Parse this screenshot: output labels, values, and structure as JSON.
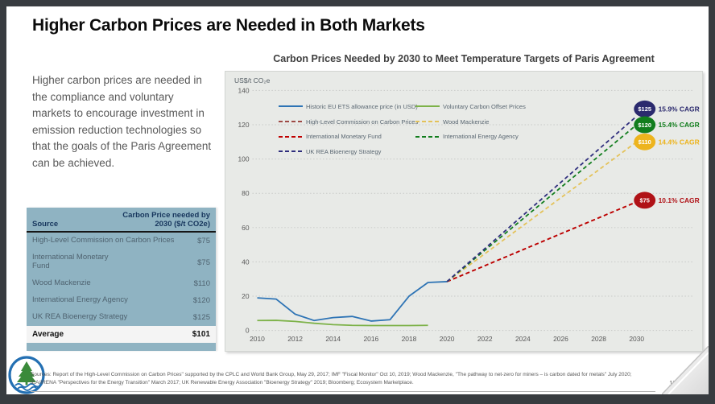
{
  "slide": {
    "title": "Higher Carbon Prices are Needed in Both Markets",
    "intro_text": "Higher carbon prices are needed in the compliance and voluntary markets to encourage investment in emission reduction technologies so that the goals of the Paris Agreement can be achieved.",
    "sources_line1": "Sources: Report of the High-Level Commission on Carbon Prices\" supported by the CPLC and World Bank Group, May 29, 2017; IMF \"Fiscal Monitor\" Oct 10, 2019; Wood Mackenzie, \"The pathway to net-zero for miners – is carbon dated for metals\" July 2020;",
    "sources_line2": "IEA/IRENA \"Perspectives for the Energy Transition\" March 2017; UK Renewable Energy Association \"Bioenergy Strategy\" 2019; Bloomberg; Ecosystem Marketplace.",
    "page_number": "17"
  },
  "table": {
    "headers": [
      "Source",
      "Carbon Price needed by 2030 ($/t CO2e)"
    ],
    "rows": [
      {
        "source": "High-Level Commission on Carbon Prices",
        "value": "$75"
      },
      {
        "source": "International Monetary\nFund",
        "value": "$75"
      },
      {
        "source": "Wood Mackenzie",
        "value": "$110"
      },
      {
        "source": "International Energy Agency",
        "value": "$120"
      },
      {
        "source": "UK REA Bioenergy Strategy",
        "value": "$125"
      }
    ],
    "footer_row": {
      "source": "Average",
      "value": "$101"
    }
  },
  "chart_data": {
    "type": "line",
    "title": "Carbon Prices Needed by 2030 to Meet Temperature Targets of Paris Agreement",
    "ylabel": "US$/t CO₂e",
    "ylim": [
      0,
      140
    ],
    "ytick_step": 20,
    "xticks": [
      2010,
      2012,
      2014,
      2016,
      2018,
      2020,
      2022,
      2024,
      2026,
      2028,
      2030
    ],
    "grid": "dotted-horizontal",
    "legend_position": "top-center-two-columns",
    "series": [
      {
        "name": "Historic EU ETS allowance price (in USD)",
        "color": "#2E74B5",
        "style": "solid",
        "points": [
          [
            2010,
            19
          ],
          [
            2011,
            18.3
          ],
          [
            2012,
            9.5
          ],
          [
            2013,
            5.8
          ],
          [
            2014,
            7.5
          ],
          [
            2015,
            8.2
          ],
          [
            2016,
            5.5
          ],
          [
            2017,
            6.3
          ],
          [
            2018,
            20
          ],
          [
            2019,
            28
          ],
          [
            2020,
            28.5
          ]
        ]
      },
      {
        "name": "Voluntary Carbon Offset Prices",
        "color": "#7DB249",
        "style": "solid",
        "points": [
          [
            2010,
            5.8
          ],
          [
            2011,
            5.9
          ],
          [
            2012,
            5.3
          ],
          [
            2013,
            4.2
          ],
          [
            2014,
            3.4
          ],
          [
            2015,
            3.0
          ],
          [
            2016,
            2.9
          ],
          [
            2017,
            2.9
          ],
          [
            2018,
            2.9
          ],
          [
            2019,
            3.0
          ]
        ]
      },
      {
        "name": "High-Level Commission on Carbon Prices",
        "color": "#9E4A45",
        "style": "dashed",
        "points": [
          [
            2020,
            28.5
          ],
          [
            2030,
            75
          ]
        ]
      },
      {
        "name": "International Monetary Fund",
        "color": "#C00000",
        "style": "dashed",
        "points": [
          [
            2020,
            28.5
          ],
          [
            2030,
            75
          ]
        ]
      },
      {
        "name": "Wood Mackenzie",
        "color": "#E4C259",
        "style": "dashed",
        "points": [
          [
            2020,
            28.5
          ],
          [
            2030,
            110
          ]
        ]
      },
      {
        "name": "International Energy Agency",
        "color": "#117D1D",
        "style": "dashed",
        "points": [
          [
            2020,
            28.5
          ],
          [
            2030,
            120
          ]
        ]
      },
      {
        "name": "UK REA Bioenergy Strategy",
        "color": "#2F2E7D",
        "style": "dashed",
        "points": [
          [
            2020,
            28.5
          ],
          [
            2030,
            125
          ]
        ]
      }
    ],
    "end_labels": [
      {
        "price": "$125",
        "cagr": "15.9% CAGR",
        "value": 125,
        "color": "#2B2A6E",
        "dy": -9
      },
      {
        "price": "$120",
        "cagr": "15.4% CAGR",
        "value": 120,
        "color": "#117D1D",
        "dy": 0
      },
      {
        "price": "$110",
        "cagr": "14.4% CAGR",
        "value": 110,
        "color": "#EDB41E",
        "dy": 0
      },
      {
        "price": "$75",
        "cagr": "10.1% CAGR",
        "value": 75,
        "color": "#B01217",
        "dy": -2
      }
    ],
    "legend": {
      "col1": [
        {
          "label": "Historic EU ETS allowance price (in USD)",
          "color": "#2E74B5",
          "style": "solid"
        },
        {
          "label": "High-Level Commission on Carbon Prices",
          "color": "#9E4A45",
          "style": "dashed"
        },
        {
          "label": "International Monetary Fund",
          "color": "#C00000",
          "style": "dashed"
        },
        {
          "label": "UK REA Bioenergy Strategy",
          "color": "#2F2E7D",
          "style": "dashed"
        }
      ],
      "col2": [
        {
          "label": "Voluntary Carbon Offset Prices",
          "color": "#7DB249",
          "style": "solid"
        },
        {
          "label": "Wood Mackenzie",
          "color": "#E4C259",
          "style": "dashed"
        },
        {
          "label": "International Energy Agency",
          "color": "#117D1D",
          "style": "dashed"
        }
      ]
    }
  }
}
